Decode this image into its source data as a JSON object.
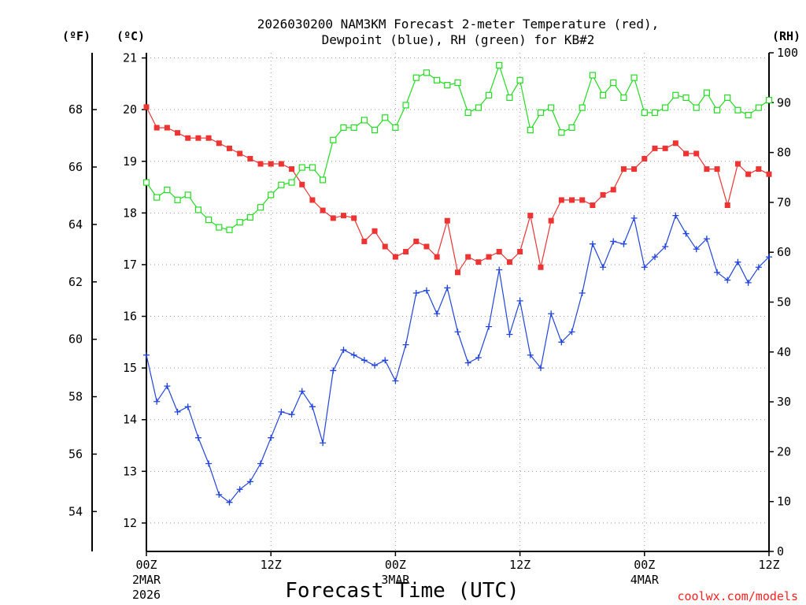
{
  "chart_data": {
    "type": "line",
    "title_lines": [
      "2026030200 NAM3KM Forecast 2-meter Temperature (red),",
      "Dewpoint (blue), RH (green) for KB#2"
    ],
    "xlabel": "Forecast Time (UTC)",
    "credit": "coolwx.com/models",
    "axis_headers": {
      "fahrenheit": "(ºF)",
      "celsius": "(ºC)",
      "rh": "(RH)"
    },
    "x_ticks": [
      {
        "hour": 0,
        "label": "00Z",
        "sub1": "2MAR",
        "sub2": "2026"
      },
      {
        "hour": 12,
        "label": "12Z"
      },
      {
        "hour": 24,
        "label": "00Z",
        "sub1": "3MAR"
      },
      {
        "hour": 36,
        "label": "12Z"
      },
      {
        "hour": 48,
        "label": "00Z",
        "sub1": "4MAR"
      },
      {
        "hour": 60,
        "label": "12Z"
      }
    ],
    "xlim": [
      0,
      60
    ],
    "celsius_range": [
      11.45,
      21.1
    ],
    "celsius_ticks": [
      12,
      13,
      14,
      15,
      16,
      17,
      18,
      19,
      20,
      21
    ],
    "fahrenheit_ticks": [
      54,
      56,
      58,
      60,
      62,
      64,
      66,
      68
    ],
    "rh_range": [
      0,
      100
    ],
    "rh_ticks": [
      0,
      10,
      20,
      30,
      40,
      50,
      60,
      70,
      80,
      90,
      100
    ],
    "colors": {
      "temperature": "#ee3333",
      "dewpoint": "#2244dd",
      "rh": "#22dd22",
      "axis": "#000000",
      "grid": "#999999"
    },
    "series": [
      {
        "name": "Temperature",
        "axis": "celsius",
        "marker": "filled-square",
        "x": [
          0,
          1,
          2,
          3,
          4,
          5,
          6,
          7,
          8,
          9,
          10,
          11,
          12,
          13,
          14,
          15,
          16,
          17,
          18,
          19,
          20,
          21,
          22,
          23,
          24,
          25,
          26,
          27,
          28,
          29,
          30,
          31,
          32,
          33,
          34,
          35,
          36,
          37,
          38,
          39,
          40,
          41,
          42,
          43,
          44,
          45,
          46,
          47,
          48,
          49,
          50,
          51,
          52,
          53,
          54,
          55,
          56,
          57,
          58,
          59,
          60
        ],
        "values": [
          20.05,
          19.65,
          19.65,
          19.55,
          19.45,
          19.45,
          19.45,
          19.35,
          19.25,
          19.15,
          19.05,
          18.95,
          18.95,
          18.95,
          18.85,
          18.55,
          18.25,
          18.05,
          17.9,
          17.95,
          17.9,
          17.45,
          17.65,
          17.35,
          17.15,
          17.25,
          17.45,
          17.35,
          17.15,
          17.85,
          16.85,
          17.15,
          17.05,
          17.15,
          17.25,
          17.05,
          17.25,
          17.95,
          16.95,
          17.85,
          18.25,
          18.25,
          18.25,
          18.15,
          18.35,
          18.45,
          18.85,
          18.85,
          19.05,
          19.25,
          19.25,
          19.35,
          19.15,
          19.15,
          18.85,
          18.85,
          18.15,
          18.95,
          18.75,
          18.85,
          18.75
        ]
      },
      {
        "name": "Dewpoint",
        "axis": "celsius",
        "marker": "plus",
        "x": [
          0,
          1,
          2,
          3,
          4,
          5,
          6,
          7,
          8,
          9,
          10,
          11,
          12,
          13,
          14,
          15,
          16,
          17,
          18,
          19,
          20,
          21,
          22,
          23,
          24,
          25,
          26,
          27,
          28,
          29,
          30,
          31,
          32,
          33,
          34,
          35,
          36,
          37,
          38,
          39,
          40,
          41,
          42,
          43,
          44,
          45,
          46,
          47,
          48,
          49,
          50,
          51,
          52,
          53,
          54,
          55,
          56,
          57,
          58,
          59,
          60
        ],
        "values": [
          15.25,
          14.35,
          14.65,
          14.15,
          14.25,
          13.65,
          13.15,
          12.55,
          12.4,
          12.65,
          12.8,
          13.15,
          13.65,
          14.15,
          14.1,
          14.55,
          14.25,
          13.55,
          14.95,
          15.35,
          15.25,
          15.15,
          15.05,
          15.15,
          14.75,
          15.45,
          16.45,
          16.5,
          16.05,
          16.55,
          15.7,
          15.1,
          15.2,
          15.8,
          16.9,
          15.65,
          16.3,
          15.25,
          15.0,
          16.05,
          15.5,
          15.7,
          16.45,
          17.4,
          16.95,
          17.45,
          17.4,
          17.9,
          16.95,
          17.15,
          17.35,
          17.95,
          17.6,
          17.3,
          17.5,
          16.85,
          16.7,
          17.05,
          16.65,
          16.95,
          17.15
        ]
      },
      {
        "name": "RH",
        "axis": "rh",
        "marker": "open-square",
        "x": [
          0,
          1,
          2,
          3,
          4,
          5,
          6,
          7,
          8,
          9,
          10,
          11,
          12,
          13,
          14,
          15,
          16,
          17,
          18,
          19,
          20,
          21,
          22,
          23,
          24,
          25,
          26,
          27,
          28,
          29,
          30,
          31,
          32,
          33,
          34,
          35,
          36,
          37,
          38,
          39,
          40,
          41,
          42,
          43,
          44,
          45,
          46,
          47,
          48,
          49,
          50,
          51,
          52,
          53,
          54,
          55,
          56,
          57,
          58,
          59,
          60
        ],
        "values": [
          74,
          71,
          72.5,
          70.5,
          71.5,
          68.5,
          66.5,
          65,
          64.5,
          66,
          67,
          69,
          71.5,
          73.5,
          74,
          77,
          77,
          74.5,
          82.5,
          85,
          85,
          86.5,
          84.5,
          87,
          85,
          89.5,
          95,
          96,
          94.5,
          93.5,
          94,
          88,
          89,
          91.5,
          97.5,
          91,
          94.5,
          84.5,
          88,
          89,
          84,
          85,
          89,
          95.5,
          91.5,
          94,
          91,
          95,
          88,
          88,
          89,
          91.5,
          91,
          89,
          92,
          88.5,
          91,
          88.5,
          87.5,
          89,
          90.5
        ]
      }
    ]
  }
}
